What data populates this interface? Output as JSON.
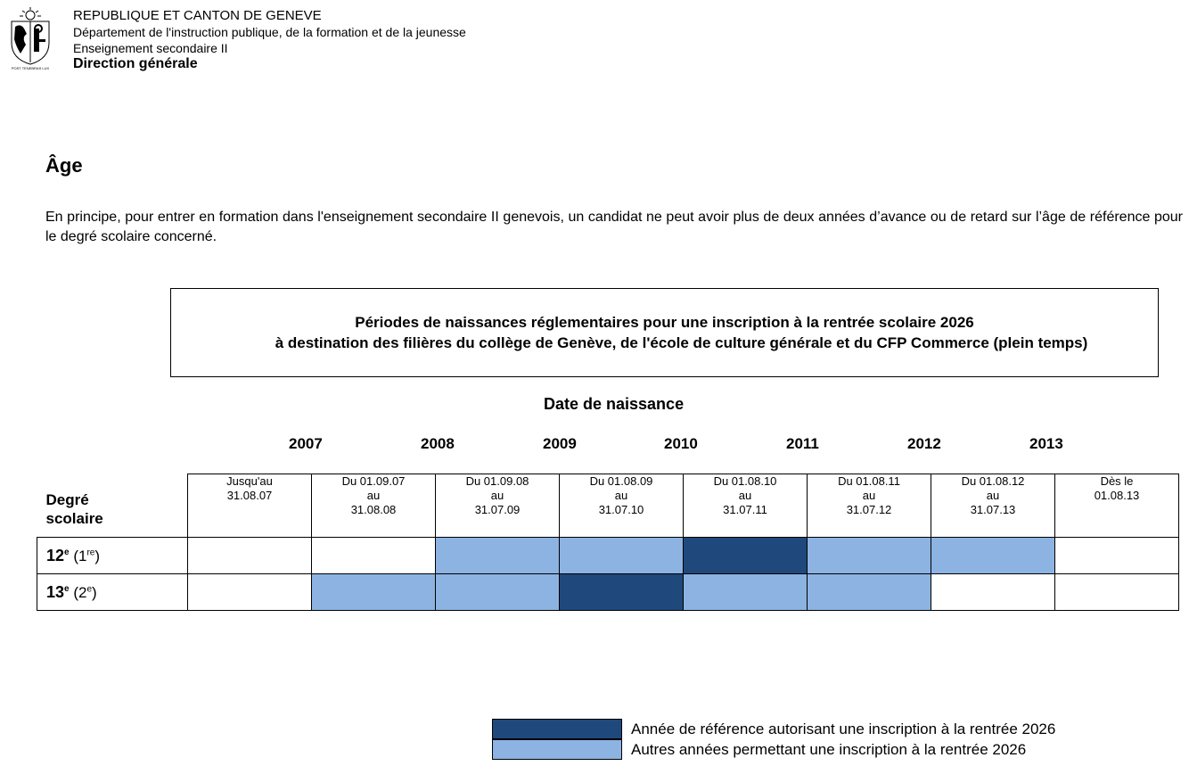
{
  "header": {
    "line1": "REPUBLIQUE ET CANTON DE GENEVE",
    "line2": "Département de l'instruction publique, de la formation et de la jeunesse",
    "line3": "Enseignement secondaire II",
    "line4": "Direction générale",
    "logo_motto": "POST TENEBRAS LUX",
    "logo_icon": "geneva-coat-of-arms"
  },
  "section_title": "Âge",
  "intro_text": "En principe, pour entrer en formation dans l'enseignement secondaire II genevois, un candidat ne peut avoir plus de deux années d’avance ou de retard sur l’âge de référence pour le degré scolaire concerné.",
  "table_title": {
    "line1": "Périodes de naissances réglementaires pour une inscription à la rentrée scolaire 2026",
    "line2": "à destination des filières du collège de Genève, de l'école de culture générale et du CFP Commerce (plein temps)"
  },
  "birth_heading": "Date de naissance",
  "years": [
    "2007",
    "2008",
    "2009",
    "2010",
    "2011",
    "2012",
    "2013"
  ],
  "corner_label": {
    "line1": "Degré",
    "line2": "scolaire"
  },
  "periods": [
    {
      "line1": "Jusqu'au",
      "line2": "31.08.07",
      "line3": ""
    },
    {
      "line1": "Du 01.09.07",
      "line2": "au",
      "line3": "31.08.08"
    },
    {
      "line1": "Du 01.09.08",
      "line2": "au",
      "line3": "31.07.09"
    },
    {
      "line1": "Du 01.08.09",
      "line2": "au",
      "line3": "31.07.10"
    },
    {
      "line1": "Du 01.08.10",
      "line2": "au",
      "line3": "31.07.11"
    },
    {
      "line1": "Du 01.08.11",
      "line2": "au",
      "line3": "31.07.12"
    },
    {
      "line1": "Du 01.08.12",
      "line2": "au",
      "line3": "31.07.13"
    },
    {
      "line1": "Dès le",
      "line2": "01.08.13",
      "line3": ""
    }
  ],
  "rows": [
    {
      "grade": "12",
      "grade_sup": "e",
      "alt": "1",
      "alt_sup": "re",
      "cells": [
        "none",
        "none",
        "other",
        "other",
        "reference",
        "other",
        "other",
        "none"
      ]
    },
    {
      "grade": "13",
      "grade_sup": "e",
      "alt": "2",
      "alt_sup": "e",
      "cells": [
        "none",
        "other",
        "other",
        "reference",
        "other",
        "other",
        "none",
        "none"
      ]
    }
  ],
  "colors": {
    "reference": "#1f497d",
    "other": "#8db3e2",
    "none": "#ffffff"
  },
  "legend": {
    "reference": "Année de référence autorisant une inscription à la rentrée 2026",
    "other": "Autres années permettant une inscription à la rentrée 2026"
  }
}
